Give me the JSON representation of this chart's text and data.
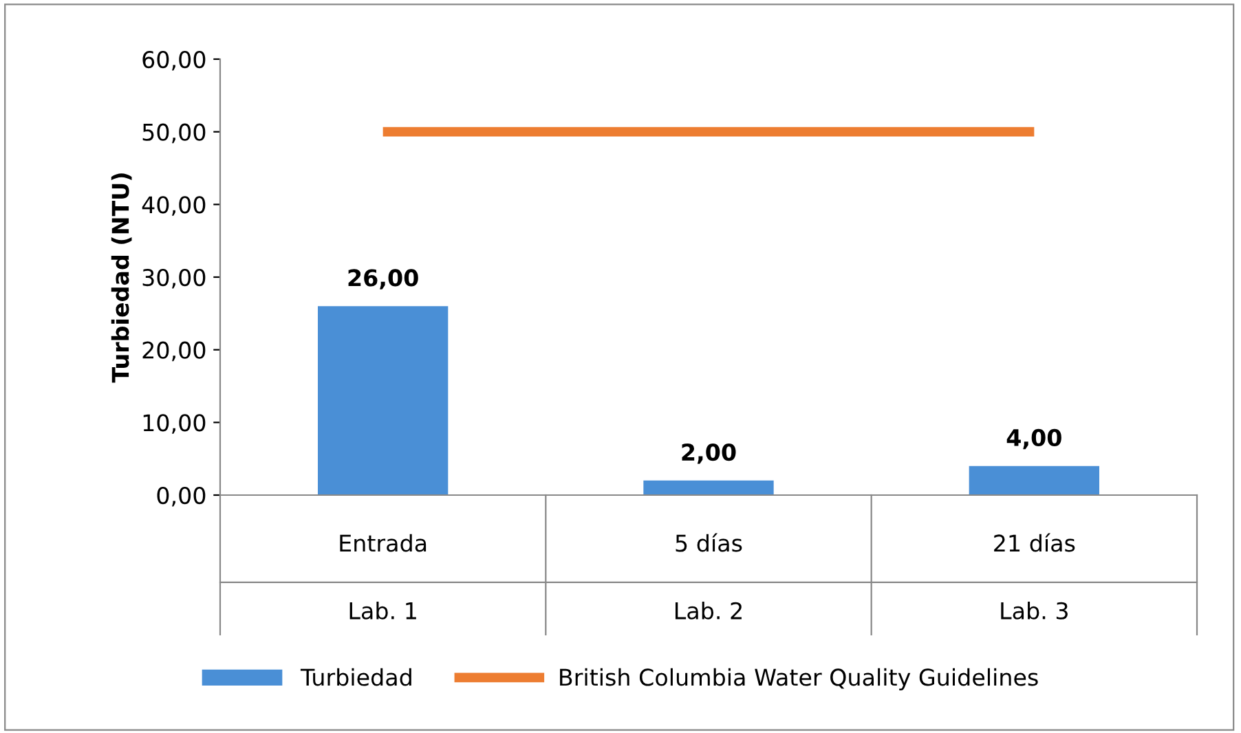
{
  "chart_data": {
    "type": "bar",
    "ylabel": "Turbiedad (NTU)",
    "categories": [
      "Entrada\nLab. 1",
      "5 días\nLab. 2",
      "21 días\nLab. 3"
    ],
    "series": [
      {
        "name": "Turbiedad",
        "color": "#4a8fd6",
        "values": [
          26,
          2,
          4
        ],
        "value_labels": [
          "26,00",
          "2,00",
          "4,00"
        ]
      },
      {
        "name": "British Columbia Water Quality Guidelines",
        "type": "line",
        "color": "#ed7d31",
        "values": [
          50,
          50,
          50
        ]
      }
    ],
    "ylim": [
      0,
      60
    ],
    "yticks": [
      {
        "value": 0,
        "label": "0,00"
      },
      {
        "value": 10,
        "label": "10,00"
      },
      {
        "value": 20,
        "label": "20,00"
      },
      {
        "value": 30,
        "label": "30,00"
      },
      {
        "value": 40,
        "label": "40,00"
      },
      {
        "value": 50,
        "label": "50,00"
      },
      {
        "value": 60,
        "label": "60,00"
      }
    ],
    "grid": false,
    "legend": "bottom"
  }
}
